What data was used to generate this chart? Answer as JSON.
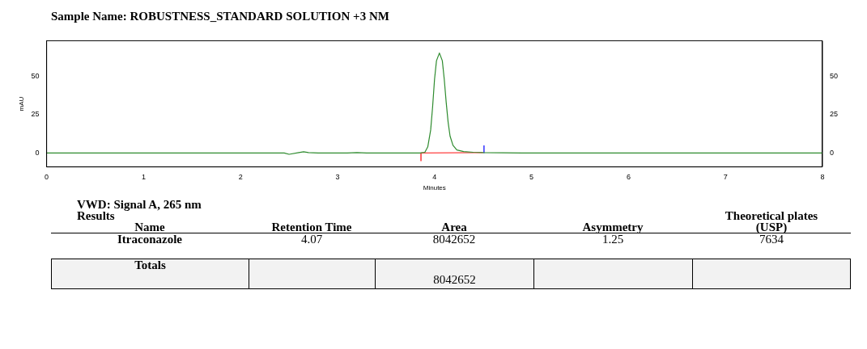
{
  "chart_data": {
    "type": "line",
    "title": "Sample Name: ROBUSTNESS_STANDARD SOLUTION +3 NM",
    "xlabel": "Minutes",
    "ylabel": "mAU",
    "xlim": [
      0,
      8
    ],
    "xticks": [
      0,
      1,
      2,
      3,
      4,
      5,
      6,
      7,
      8
    ],
    "ylim": [
      -9,
      73
    ],
    "yticks": [
      0,
      25,
      50
    ],
    "y2lim": [
      -9,
      73
    ],
    "y2ticks": [
      0,
      25,
      50
    ],
    "grid": false,
    "legend": false,
    "marker": "none",
    "line_style": "solid",
    "series": [
      {
        "color": "#2e8b2e",
        "x": [
          0,
          2.4,
          2.45,
          2.5,
          2.6,
          2.65,
          2.7,
          2.8,
          3.1,
          3.2,
          3.3,
          3.85,
          3.9,
          3.93,
          3.96,
          3.98,
          4.0,
          4.02,
          4.05,
          4.08,
          4.1,
          4.12,
          4.14,
          4.16,
          4.19,
          4.23,
          4.3,
          4.4,
          4.5,
          4.7,
          4.9,
          8
        ],
        "values": [
          0,
          0,
          0,
          -0.8,
          0.3,
          0.8,
          0.3,
          0,
          0,
          0.3,
          0,
          0,
          0.5,
          4,
          15,
          30,
          48,
          60,
          65,
          60,
          48,
          33,
          20,
          11,
          5,
          2,
          1,
          0.5,
          0.3,
          0.2,
          0,
          0
        ]
      },
      {
        "color": "#ff4040",
        "x": [
          3.86,
          4.5
        ],
        "values": [
          0,
          0.3
        ]
      },
      {
        "color": "#ff0000",
        "x": [
          3.86,
          3.86
        ],
        "values": [
          0,
          -5
        ]
      },
      {
        "color": "#0000ff",
        "x": [
          4.51,
          4.51
        ],
        "values": [
          0,
          5
        ]
      }
    ],
    "annotations": [
      "VWD: Signal A, 265 nm Results",
      "Name",
      "Retention Time",
      "Area",
      "Asymmetry",
      "Theoretical plates (USP)",
      "Itraconazole",
      "4.07",
      "8042652",
      "1.25",
      "7634",
      "Totals",
      "8042652"
    ]
  }
}
